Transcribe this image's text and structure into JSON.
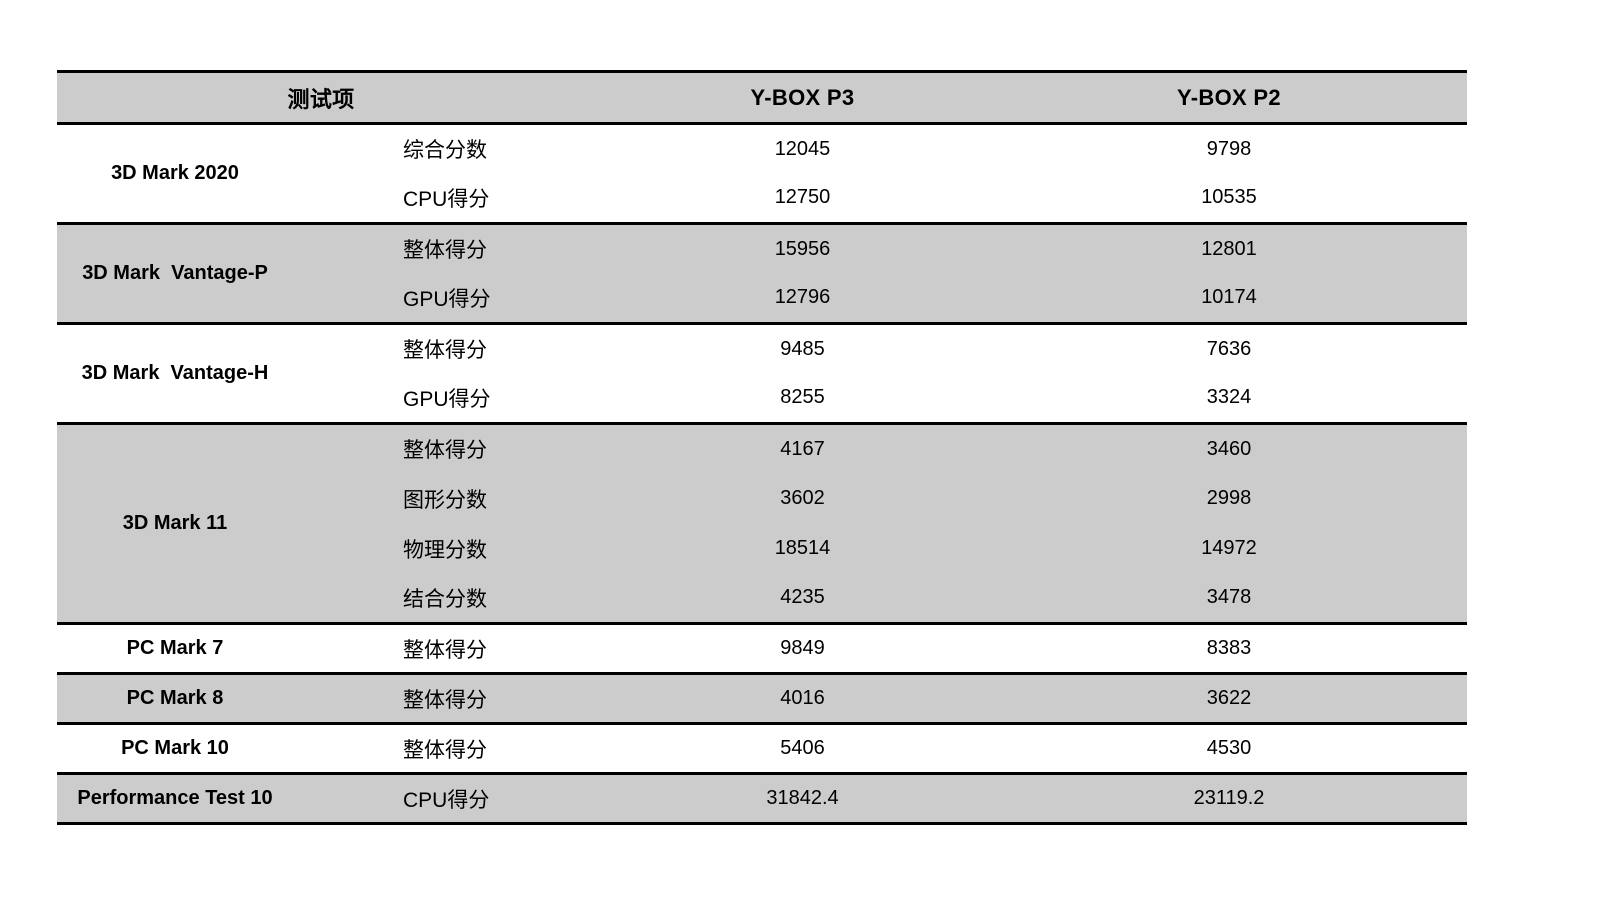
{
  "table": {
    "header": {
      "col_test": "测试项",
      "col_p3": "Y-BOX P3",
      "col_p2": "Y-BOX P2"
    },
    "groups": [
      {
        "name": "3D Mark 2020",
        "shaded": false,
        "rows": [
          {
            "metric": "综合分数",
            "p3": "12045",
            "p2": "9798"
          },
          {
            "metric": "CPU得分",
            "p3": "12750",
            "p2": "10535"
          }
        ]
      },
      {
        "name": "3D Mark  Vantage-P",
        "shaded": true,
        "rows": [
          {
            "metric": "整体得分",
            "p3": "15956",
            "p2": "12801"
          },
          {
            "metric": "GPU得分",
            "p3": "12796",
            "p2": "10174"
          }
        ]
      },
      {
        "name": "3D Mark  Vantage-H",
        "shaded": false,
        "rows": [
          {
            "metric": "整体得分",
            "p3": "9485",
            "p2": "7636"
          },
          {
            "metric": "GPU得分",
            "p3": "8255",
            "p2": "3324"
          }
        ]
      },
      {
        "name": "3D Mark 11",
        "shaded": true,
        "rows": [
          {
            "metric": "整体得分",
            "p3": "4167",
            "p2": "3460"
          },
          {
            "metric": "图形分数",
            "p3": "3602",
            "p2": "2998"
          },
          {
            "metric": "物理分数",
            "p3": "18514",
            "p2": "14972"
          },
          {
            "metric": "结合分数",
            "p3": "4235",
            "p2": "3478"
          }
        ]
      },
      {
        "name": "PC Mark 7",
        "shaded": false,
        "rows": [
          {
            "metric": "整体得分",
            "p3": "9849",
            "p2": "8383"
          }
        ]
      },
      {
        "name": "PC Mark 8",
        "shaded": true,
        "rows": [
          {
            "metric": "整体得分",
            "p3": "4016",
            "p2": "3622"
          }
        ]
      },
      {
        "name": "PC Mark 10",
        "shaded": false,
        "rows": [
          {
            "metric": "整体得分",
            "p3": "5406",
            "p2": "4530"
          }
        ]
      },
      {
        "name": "Performance Test 10",
        "shaded": true,
        "rows": [
          {
            "metric": "CPU得分",
            "p3": "31842.4",
            "p2": "23119.2"
          }
        ]
      }
    ],
    "colors": {
      "band": "#cccccc",
      "border": "#000000",
      "text": "#000000",
      "background": "#ffffff"
    }
  }
}
